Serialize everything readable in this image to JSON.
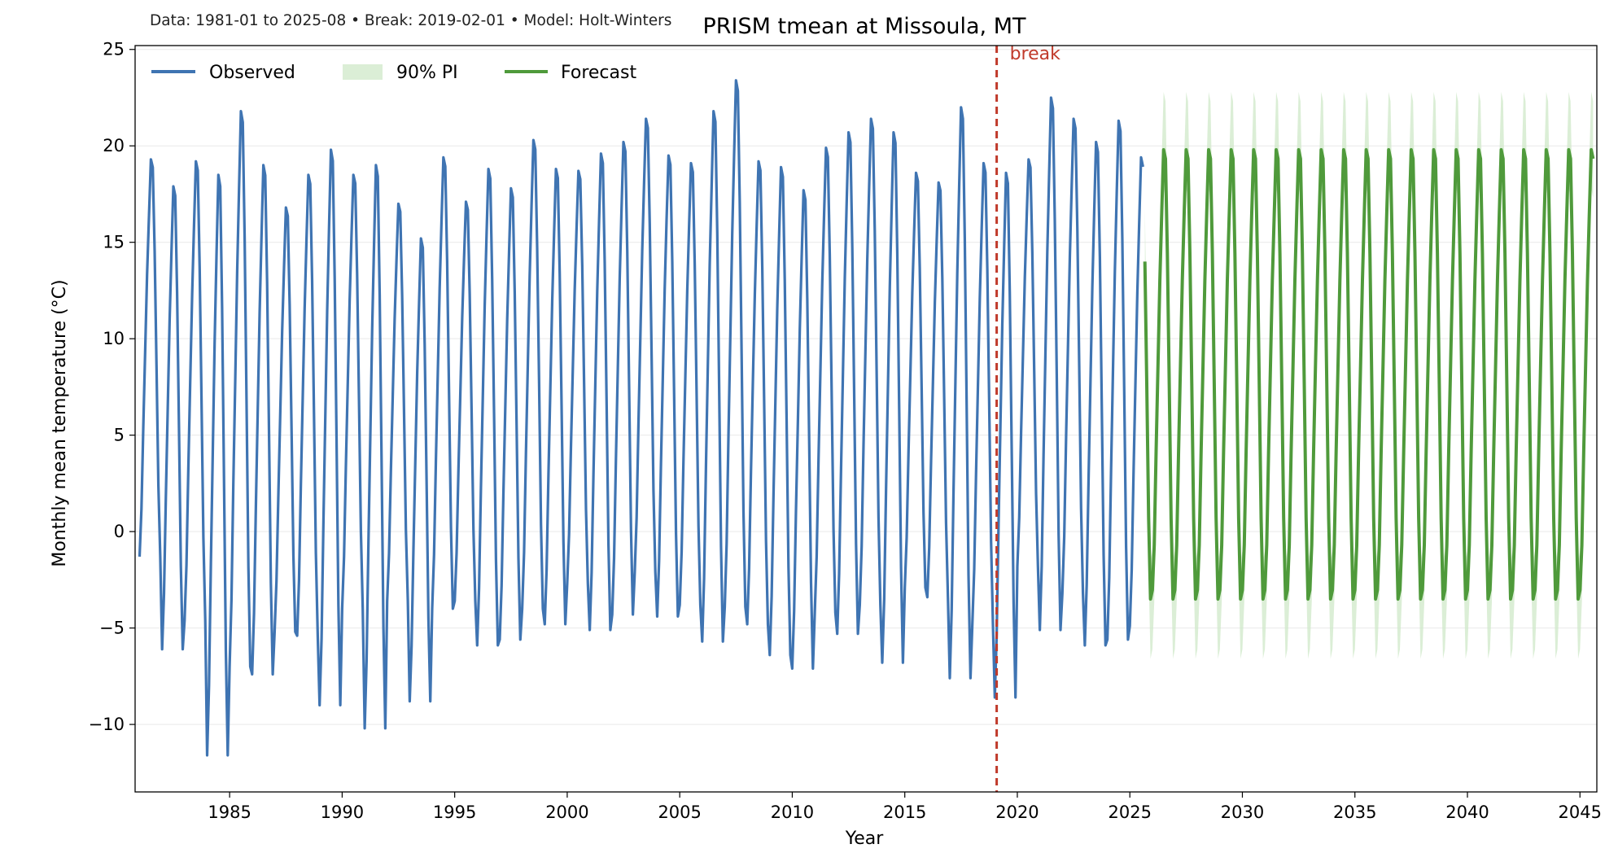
{
  "chart_data": {
    "type": "line",
    "title": "PRISM tmean at Missoula, MT",
    "subtitle": "Data: 1981-01 to 2025-08  •  Break: 2019-02-01  •  Model: Holt-Winters",
    "xlabel": "Year",
    "ylabel": "Monthly mean temperature (°C)",
    "xlim": [
      1980.8,
      2045.75
    ],
    "ylim": [
      -13.5,
      25.2
    ],
    "x_ticks": [
      1985,
      1990,
      1995,
      2000,
      2005,
      2010,
      2015,
      2020,
      2025,
      2030,
      2035,
      2040,
      2045
    ],
    "y_ticks": [
      -10,
      -5,
      0,
      5,
      10,
      15,
      20,
      25
    ],
    "grid": "horizontal light",
    "legend": {
      "placement": "top-left",
      "entries": [
        "Observed",
        "90% PI",
        "Forecast"
      ]
    },
    "break": {
      "label": "break",
      "x": 2019.083
    },
    "observed": {
      "name": "Observed",
      "start": "1981-01",
      "end": "2025-08",
      "annual_min": [
        -1.3,
        -6.1,
        -4.6,
        -11.6,
        -7.0,
        -7.4,
        -5.2,
        -5.4,
        -9.0,
        -4.0,
        -10.2,
        -3.6,
        -8.8,
        -4.0,
        -3.6,
        -5.9,
        -5.6,
        -4.0,
        -4.8,
        -2.7,
        -5.1,
        -4.3,
        -2.1,
        -4.4,
        -3.8,
        -5.7,
        -3.9,
        -4.8,
        -6.4,
        -7.1,
        -4.2,
        -5.3,
        -3.8,
        -6.8,
        -2.9,
        -3.4,
        -7.6,
        -4.8,
        -8.6,
        -1.8,
        -5.1,
        -3.2,
        -5.9,
        -5.6,
        -4.9
      ],
      "annual_max": [
        19.3,
        17.9,
        19.2,
        18.5,
        21.8,
        19.0,
        16.8,
        18.5,
        19.8,
        18.5,
        19.0,
        17.0,
        15.2,
        19.4,
        17.1,
        18.8,
        17.8,
        20.3,
        18.8,
        18.7,
        19.6,
        20.2,
        21.4,
        19.5,
        19.1,
        21.8,
        23.4,
        19.2,
        18.9,
        17.7,
        19.9,
        20.7,
        21.4,
        20.7,
        18.6,
        18.1,
        22.0,
        19.1,
        18.6,
        19.3,
        22.5,
        21.4,
        20.2,
        21.3,
        19.4
      ]
    },
    "forecast": {
      "name": "Forecast",
      "start": "2025-09",
      "end": "2045-08",
      "summer_peak": 19.8,
      "winter_trough": -3.5,
      "first_value": 14.0
    },
    "interval": {
      "name": "90% PI",
      "upper_peak": 22.8,
      "lower_trough": -6.6
    },
    "colors": {
      "observed": "#3f74b2",
      "forecast": "#4f9a3b",
      "interval": "#cfe8c8",
      "break": "#c03a2b"
    }
  }
}
